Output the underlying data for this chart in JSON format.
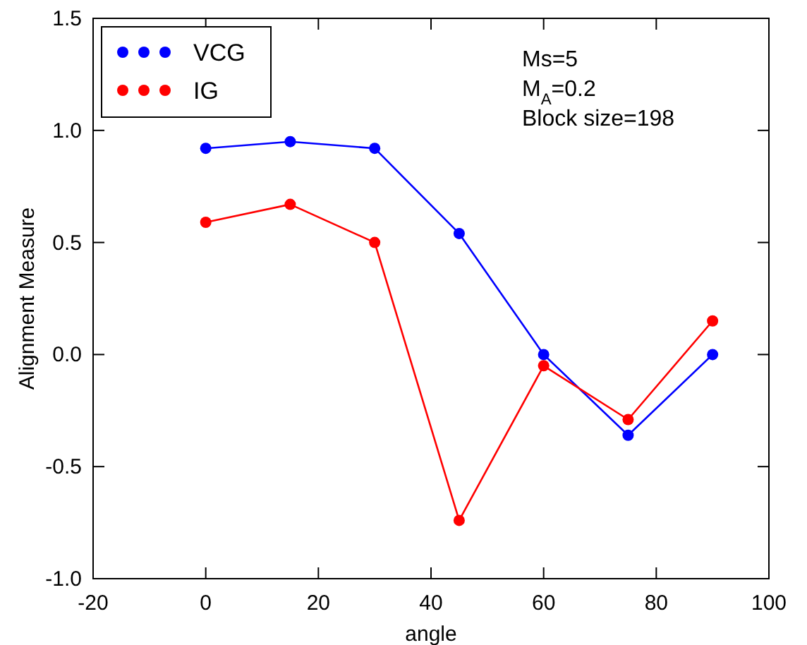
{
  "chart_data": {
    "type": "line",
    "xlabel": "angle",
    "ylabel": "Alignment Measure",
    "x": [
      0,
      15,
      30,
      45,
      60,
      75,
      90
    ],
    "series": [
      {
        "name": "VCG",
        "color": "#0000ff",
        "values": [
          0.92,
          0.95,
          0.92,
          0.54,
          0.0,
          -0.36,
          0.0
        ]
      },
      {
        "name": "IG",
        "color": "#ff0000",
        "values": [
          0.59,
          0.67,
          0.5,
          -0.74,
          -0.05,
          -0.29,
          0.15
        ]
      }
    ],
    "xlim": [
      -20,
      100
    ],
    "xticks": [
      -20,
      0,
      20,
      40,
      60,
      80,
      100
    ],
    "ylim": [
      -1.0,
      1.5
    ],
    "yticks": [
      {
        "value": -1.0,
        "label": "-1.0"
      },
      {
        "value": -0.5,
        "label": "-0.5"
      },
      {
        "value": 0,
        "label": "0.0"
      },
      {
        "value": 0.5,
        "label": "0.5"
      },
      {
        "value": 1.0,
        "label": "1.0"
      },
      {
        "value": 1.5,
        "label": "1.5"
      }
    ],
    "annotations": [
      "Ms=5",
      "M$_{A}$=0.2",
      "Block size=198"
    ],
    "legend": "top left",
    "marker": "circle",
    "line_style": "solid",
    "grid": false
  }
}
